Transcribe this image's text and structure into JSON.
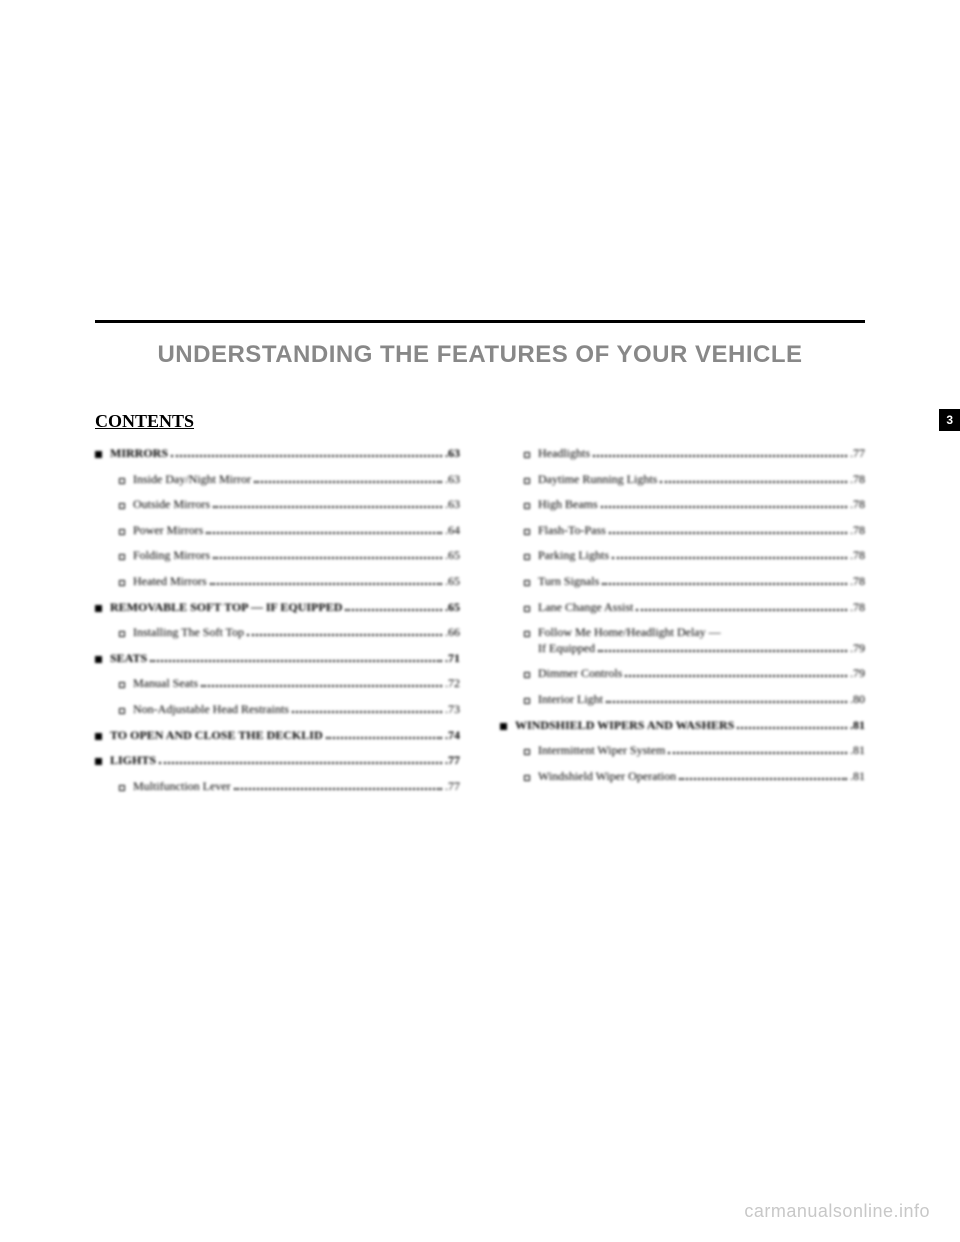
{
  "chapter_title": "UNDERSTANDING THE FEATURES OF YOUR VEHICLE",
  "contents_heading": "CONTENTS",
  "page_tab": "3",
  "watermark": "carmanualsonline.info",
  "left_column": [
    {
      "level": 0,
      "label": "MIRRORS",
      "page": ".63"
    },
    {
      "level": 1,
      "label": "Inside Day/Night Mirror",
      "page": ".63"
    },
    {
      "level": 1,
      "label": "Outside Mirrors",
      "page": ".63"
    },
    {
      "level": 1,
      "label": "Power Mirrors",
      "page": ".64"
    },
    {
      "level": 1,
      "label": "Folding Mirrors",
      "page": ".65"
    },
    {
      "level": 1,
      "label": "Heated Mirrors",
      "page": ".65"
    },
    {
      "level": 0,
      "label": "REMOVABLE SOFT TOP — IF EQUIPPED",
      "page": ".65"
    },
    {
      "level": 1,
      "label": "Installing The Soft Top",
      "page": ".66"
    },
    {
      "level": 0,
      "label": "SEATS",
      "page": ".71"
    },
    {
      "level": 1,
      "label": "Manual Seats",
      "page": ".72"
    },
    {
      "level": 1,
      "label": "Non-Adjustable Head Restraints",
      "page": ".73"
    },
    {
      "level": 0,
      "label": "TO OPEN AND CLOSE THE DECKLID",
      "page": ".74"
    },
    {
      "level": 0,
      "label": "LIGHTS",
      "page": ".77"
    },
    {
      "level": 1,
      "label": "Multifunction Lever",
      "page": ".77"
    }
  ],
  "right_column": [
    {
      "level": 1,
      "label": "Headlights",
      "page": ".77"
    },
    {
      "level": 1,
      "label": "Daytime Running Lights",
      "page": ".78"
    },
    {
      "level": 1,
      "label": "High Beams",
      "page": ".78"
    },
    {
      "level": 1,
      "label": "Flash-To-Pass",
      "page": ".78"
    },
    {
      "level": 1,
      "label": "Parking Lights",
      "page": ".78"
    },
    {
      "level": 1,
      "label": "Turn Signals",
      "page": ".78"
    },
    {
      "level": 1,
      "label": "Lane Change Assist",
      "page": ".78"
    },
    {
      "level": 1,
      "label": "Follow Me Home/Headlight Delay —",
      "label2": "If Equipped",
      "page": ".79"
    },
    {
      "level": 1,
      "label": "Dimmer Controls",
      "page": ".79"
    },
    {
      "level": 1,
      "label": "Interior Light",
      "page": ".80"
    },
    {
      "level": 0,
      "label": "WINDSHIELD WIPERS AND WASHERS",
      "page": ".81"
    },
    {
      "level": 1,
      "label": "Intermittent Wiper System",
      "page": ".81"
    },
    {
      "level": 1,
      "label": "Windshield Wiper Operation",
      "page": ".81"
    }
  ]
}
